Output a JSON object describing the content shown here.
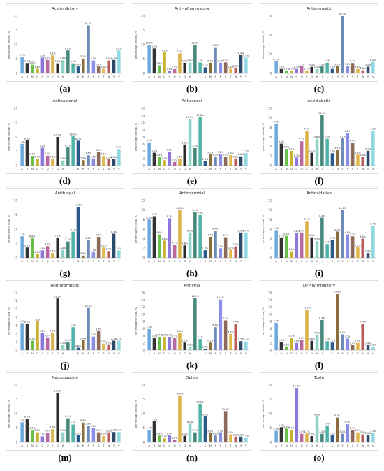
{
  "colors": [
    "#6fa8dc",
    "#333333",
    "#6abf4b",
    "#c9b22e",
    "#8f77d9",
    "#b86aa0",
    "#d9b24a",
    "#2b2b2b",
    "#8fd3c7",
    "#46887a",
    "#4fb3a7",
    "#2a5a8a",
    "#8a6d3b",
    "#6d8ab8",
    "#8b8ee6",
    "#8c6a5a",
    "#e0b84a",
    "#b85a5a",
    "#2c4a6a",
    "#8ed8e0"
  ],
  "chart_data": [
    {
      "type": "bar",
      "title": "Ace inhibitory",
      "label": "(a)",
      "ylabel": "percentage of total, %",
      "ylim": [
        0,
        20
      ],
      "categories": [
        "A",
        "R",
        "N",
        "D",
        "C",
        "Q",
        "E",
        "G",
        "H",
        "I",
        "L",
        "K",
        "M",
        "F",
        "P",
        "S",
        "T",
        "W",
        "Y",
        "V"
      ],
      "values": [
        5.7,
        3.6,
        3.0,
        1.6,
        5.5,
        4.7,
        6.3,
        3.5,
        4.6,
        8.0,
        3.5,
        2.4,
        5.2,
        16.7,
        4.5,
        2.4,
        1.6,
        4.5,
        4.7,
        8.0
      ]
    },
    {
      "type": "bar",
      "title": "Anti-inflammatory",
      "label": "(b)",
      "ylabel": "percentage of total, %",
      "ylim": [
        0,
        20
      ],
      "categories": [
        "A",
        "R",
        "N",
        "D",
        "C",
        "Q",
        "E",
        "G",
        "H",
        "I",
        "L",
        "K",
        "M",
        "F",
        "P",
        "S",
        "T",
        "W",
        "Y",
        "V"
      ],
      "values": [
        10.0,
        8.7,
        2.8,
        7.3,
        0.8,
        1.5,
        7.0,
        3.7,
        3.8,
        10.0,
        3.8,
        2.1,
        3.7,
        9.1,
        3.7,
        3.8,
        1.6,
        2.0,
        6.4,
        5.5
      ]
    },
    {
      "type": "bar",
      "title": "Antiamnestic",
      "label": "(c)",
      "ylabel": "percentage of total, %",
      "ylim": [
        0,
        30
      ],
      "categories": [
        "A",
        "R",
        "N",
        "D",
        "C",
        "Q",
        "E",
        "G",
        "H",
        "I",
        "L",
        "K",
        "M",
        "F",
        "P",
        "S",
        "T",
        "W",
        "Y",
        "V"
      ],
      "values": [
        6.2,
        2.3,
        1.5,
        1.5,
        2.3,
        3.7,
        1.5,
        3.4,
        2.3,
        3.6,
        5.6,
        2.3,
        3.7,
        30.0,
        3.8,
        5.4,
        2.3,
        1.6,
        3.5,
        6.0
      ]
    },
    {
      "type": "bar",
      "title": "Antibacterial",
      "label": "(d)",
      "ylabel": "percentage of total, %",
      "ylim": [
        0,
        20
      ],
      "categories": [
        "A",
        "R",
        "N",
        "D",
        "C",
        "Q",
        "E",
        "G",
        "H",
        "I",
        "L",
        "K",
        "M",
        "F",
        "P",
        "S",
        "T",
        "W",
        "Y",
        "V"
      ],
      "values": [
        7.6,
        8.8,
        3.4,
        2.4,
        6.2,
        3.5,
        2.5,
        10.0,
        1.8,
        6.3,
        10.2,
        8.7,
        1.9,
        3.6,
        2.5,
        4.8,
        3.4,
        2.2,
        2.3,
        5.8
      ]
    },
    {
      "type": "bar",
      "title": "Anticancer",
      "label": "(e)",
      "ylabel": "percentage of total, %",
      "ylim": [
        0,
        16
      ],
      "categories": [
        "A",
        "R",
        "N",
        "D",
        "C",
        "Q",
        "E",
        "G",
        "H",
        "I",
        "L",
        "K",
        "M",
        "F",
        "P",
        "S",
        "T",
        "W",
        "Y",
        "V"
      ],
      "values": [
        6.5,
        3.6,
        2.4,
        1.5,
        3.9,
        1.0,
        2.0,
        5.9,
        13.0,
        4.9,
        13.6,
        1.3,
        3.1,
        2.5,
        3.2,
        2.4,
        2.9,
        2.0,
        2.6,
        3.5
      ]
    },
    {
      "type": "bar",
      "title": "Antidiabetic",
      "label": "(f)",
      "ylabel": "percentage of total, %",
      "ylim": [
        0,
        12
      ],
      "categories": [
        "A",
        "R",
        "N",
        "D",
        "C",
        "Q",
        "E",
        "G",
        "H",
        "I",
        "L",
        "K",
        "M",
        "F",
        "P",
        "S",
        "T",
        "W",
        "Y",
        "V"
      ],
      "values": [
        8.8,
        4.6,
        3.5,
        3.1,
        1.7,
        5.1,
        7.3,
        2.7,
        5.6,
        10.6,
        5.6,
        2.6,
        3.3,
        5.7,
        6.8,
        4.8,
        2.3,
        1.8,
        3.1,
        7.3
      ]
    },
    {
      "type": "bar",
      "title": "Antifungal",
      "label": "(g)",
      "ylabel": "percentage of total, %",
      "ylim": [
        0,
        20
      ],
      "categories": [
        "A",
        "R",
        "N",
        "D",
        "C",
        "Q",
        "E",
        "G",
        "H",
        "I",
        "L",
        "K",
        "M",
        "F",
        "P",
        "S",
        "T",
        "W",
        "Y",
        "V"
      ],
      "values": [
        7.5,
        3.6,
        6.8,
        1.4,
        2.6,
        4.1,
        1.7,
        7.1,
        2.8,
        5.7,
        9.1,
        17.8,
        0.8,
        6.2,
        1.9,
        7.3,
        3.7,
        2.4,
        8.4,
        2.6
      ]
    },
    {
      "type": "bar",
      "title": "Antimicrobial",
      "label": "(h)",
      "ylabel": "percentage of total, %",
      "ylim": [
        0,
        12
      ],
      "categories": [
        "A",
        "R",
        "N",
        "D",
        "C",
        "Q",
        "E",
        "G",
        "H",
        "I",
        "L",
        "K",
        "M",
        "F",
        "P",
        "S",
        "T",
        "W",
        "Y",
        "V"
      ],
      "values": [
        8.0,
        8.7,
        4.9,
        3.6,
        8.3,
        2.7,
        10.0,
        2.6,
        5.3,
        9.6,
        9.0,
        1.6,
        4.4,
        5.7,
        2.0,
        4.3,
        1.7,
        2.4,
        5.3,
        5.3
      ]
    },
    {
      "type": "bar",
      "title": "Antioxidative",
      "label": "(i)",
      "ylabel": "percentage of total, %",
      "ylim": [
        0,
        12
      ],
      "categories": [
        "A",
        "R",
        "N",
        "D",
        "C",
        "Q",
        "E",
        "G",
        "H",
        "I",
        "L",
        "K",
        "M",
        "F",
        "P",
        "S",
        "T",
        "W",
        "Y",
        "V"
      ],
      "values": [
        5.8,
        4.1,
        4.6,
        1.4,
        5.2,
        5.3,
        7.7,
        4.3,
        3.5,
        8.4,
        2.9,
        3.7,
        5.5,
        10.0,
        4.9,
        4.5,
        2.2,
        4.0,
        1.0,
        6.7
      ]
    },
    {
      "type": "bar",
      "title": "Antithrombotic",
      "label": "(j)",
      "ylabel": "percentage of total, %",
      "ylim": [
        0,
        14
      ],
      "categories": [
        "A",
        "R",
        "N",
        "D",
        "C",
        "Q",
        "E",
        "G",
        "H",
        "I",
        "L",
        "K",
        "M",
        "F",
        "P",
        "S",
        "T",
        "W",
        "Y",
        "V"
      ],
      "values": [
        6.6,
        6.5,
        2.3,
        7.0,
        4.2,
        3.1,
        4.3,
        12.6,
        1.3,
        2.0,
        5.6,
        0.6,
        2.4,
        10.3,
        3.3,
        4.6,
        1.6,
        1.2,
        2.3,
        2.3
      ]
    },
    {
      "type": "bar",
      "title": "Antiviral",
      "label": "(k)",
      "ylabel": "percentage of total, %",
      "ylim": [
        0,
        16
      ],
      "categories": [
        "A",
        "R",
        "N",
        "D",
        "C",
        "Q",
        "E",
        "G",
        "H",
        "I",
        "L",
        "K",
        "M",
        "F",
        "P",
        "S",
        "T",
        "W",
        "Y",
        "V"
      ],
      "values": [
        5.9,
        3.3,
        3.7,
        3.7,
        3.7,
        3.3,
        4.8,
        2.1,
        1.0,
        14.5,
        3.1,
        0.4,
        2.1,
        6.4,
        14.1,
        8.3,
        4.5,
        7.4,
        2.5,
        2.4
      ]
    },
    {
      "type": "bar",
      "title": "DPP-IV inhibitory",
      "label": "(l)",
      "ylabel": "percentage of total, %",
      "ylim": [
        0,
        16
      ],
      "categories": [
        "A",
        "R",
        "N",
        "D",
        "C",
        "Q",
        "E",
        "G",
        "H",
        "I",
        "L",
        "K",
        "M",
        "F",
        "P",
        "S",
        "T",
        "W",
        "Y",
        "V"
      ],
      "values": [
        7.6,
        2.2,
        1.0,
        3.5,
        2.0,
        2.8,
        11.3,
        2.6,
        4.3,
        8.4,
        2.5,
        2.1,
        15.8,
        4.4,
        3.2,
        1.4,
        2.0,
        7.4,
        1.4,
        1.0
      ]
    },
    {
      "type": "bar",
      "title": "Neuropeptide",
      "label": "(m)",
      "ylabel": "percentage of total, %",
      "ylim": [
        0,
        20
      ],
      "categories": [
        "A",
        "R",
        "N",
        "D",
        "C",
        "Q",
        "E",
        "G",
        "H",
        "I",
        "L",
        "K",
        "M",
        "F",
        "P",
        "S",
        "T",
        "W",
        "Y",
        "V"
      ],
      "values": [
        7.0,
        8.3,
        4.3,
        3.5,
        2.1,
        3.4,
        4.6,
        17.3,
        3.5,
        8.4,
        6.2,
        2.5,
        6.9,
        5.8,
        5.0,
        3.5,
        2.2,
        3.2,
        3.6,
        3.6
      ]
    },
    {
      "type": "bar",
      "title": "Opioid",
      "label": "(n)",
      "ylabel": "percentage of total, %",
      "ylim": [
        0,
        20
      ],
      "categories": [
        "A",
        "R",
        "N",
        "D",
        "C",
        "Q",
        "E",
        "G",
        "H",
        "I",
        "L",
        "K",
        "M",
        "F",
        "P",
        "S",
        "T",
        "W",
        "Y",
        "V"
      ],
      "values": [
        4.4,
        7.3,
        2.4,
        1.4,
        2.4,
        0.8,
        16.4,
        2.3,
        6.5,
        3.5,
        13.4,
        9.0,
        3.2,
        2.4,
        3.2,
        10.9,
        2.8,
        2.0,
        2.0,
        1.5
      ]
    },
    {
      "type": "bar",
      "title": "Toxin",
      "label": "(o)",
      "ylabel": "percentage of total, %",
      "ylim": [
        0,
        20
      ],
      "categories": [
        "A",
        "R",
        "N",
        "D",
        "C",
        "Q",
        "E",
        "G",
        "H",
        "I",
        "L",
        "K",
        "M",
        "F",
        "P",
        "S",
        "T",
        "W",
        "Y",
        "V"
      ],
      "values": [
        4.0,
        5.3,
        4.8,
        4.4,
        19.0,
        3.0,
        3.1,
        2.2,
        9.0,
        3.0,
        5.9,
        2.5,
        8.6,
        3.0,
        6.3,
        4.3,
        3.5,
        2.8,
        2.6,
        3.3
      ]
    }
  ]
}
